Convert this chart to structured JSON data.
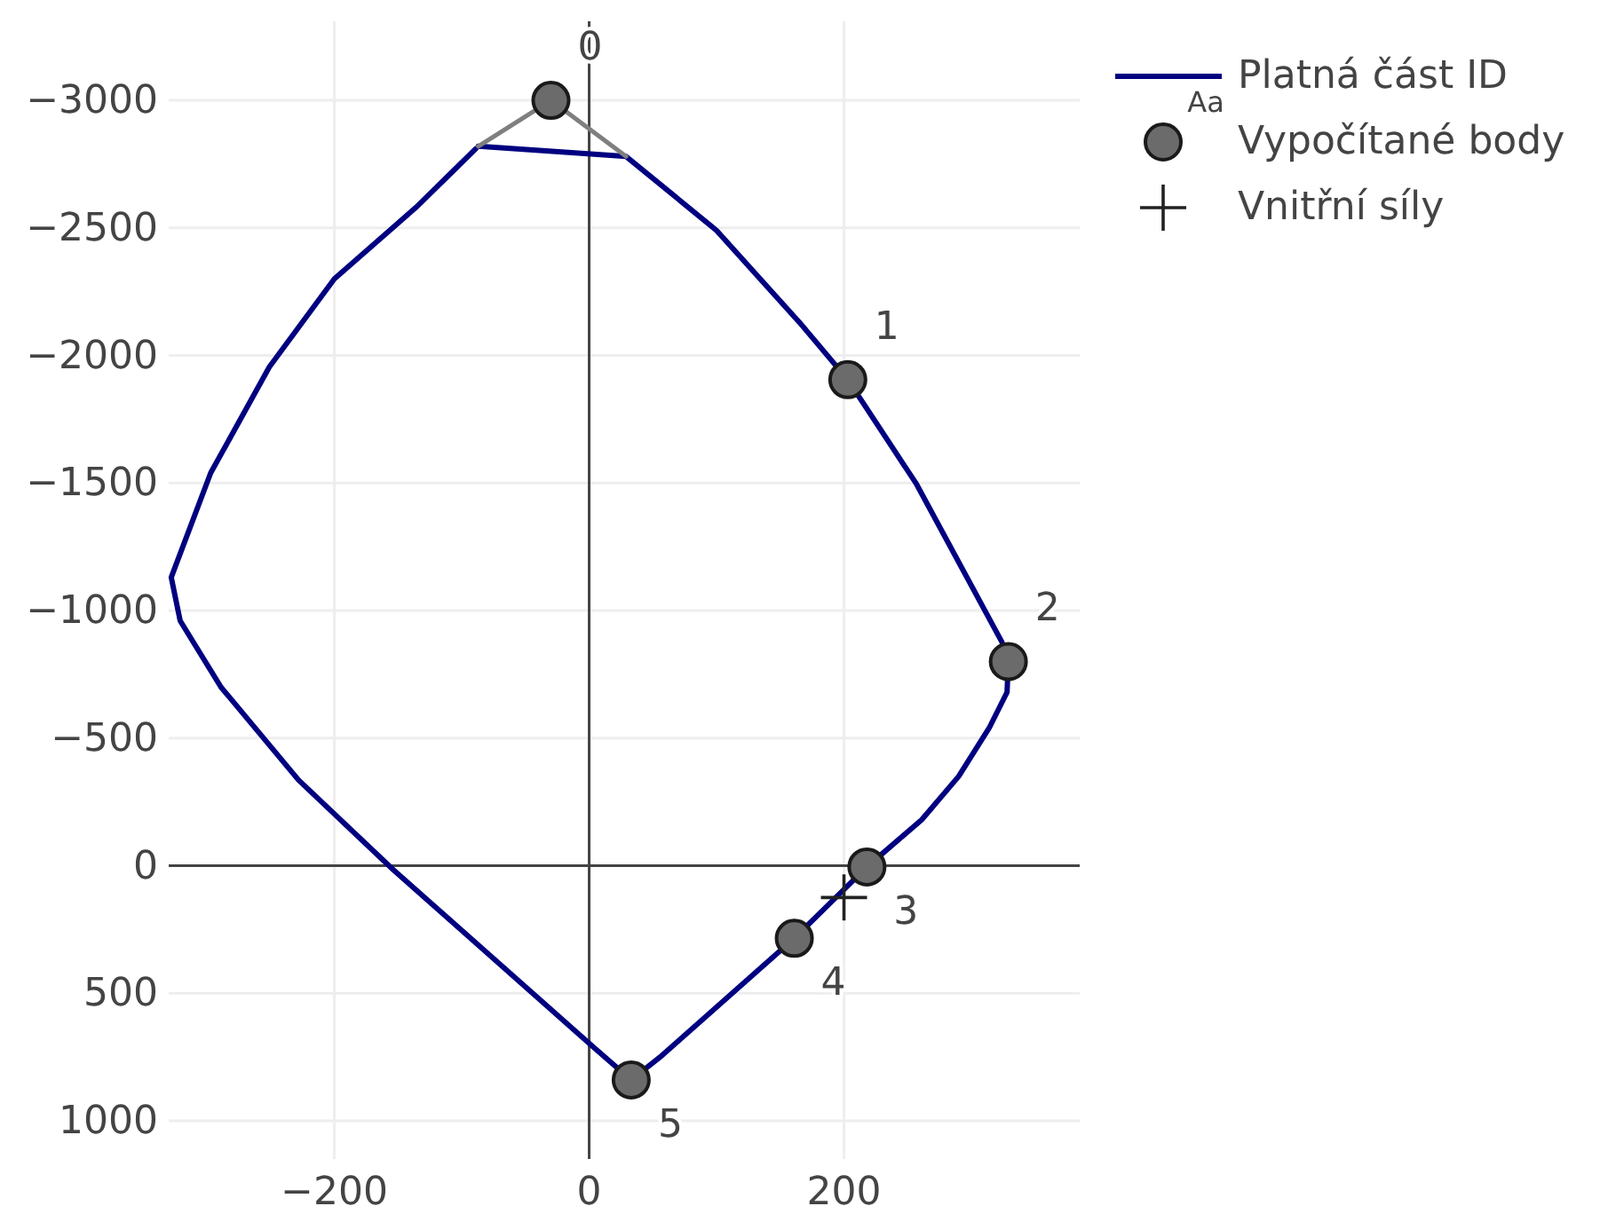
{
  "chart_data": {
    "type": "line",
    "xlim": [
      -330,
      385
    ],
    "ylim": [
      1150,
      -3310
    ],
    "xticks": [
      {
        "value": -200,
        "label": "−200"
      },
      0,
      200
    ],
    "yticks": [
      {
        "value": -3000,
        "label": "−3000"
      },
      {
        "value": -2500,
        "label": "−2500"
      },
      {
        "value": -2000,
        "label": "−2000"
      },
      {
        "value": -1500,
        "label": "−1500"
      },
      {
        "value": -1000,
        "label": "−1000"
      },
      {
        "value": -500,
        "label": "−500"
      },
      0,
      500,
      1000
    ],
    "grid": true,
    "legend": "top right",
    "series": [
      {
        "name": "Platná část ID",
        "type": "line",
        "color": "#000080",
        "x": [
          -87,
          29,
          100,
          165,
          203,
          257,
          324,
          329,
          328,
          314,
          290,
          261,
          218,
          161,
          57,
          33,
          3,
          -154,
          -228,
          -289,
          -321,
          -328,
          -325,
          -297,
          -251,
          -200,
          -136,
          -89
        ],
        "values": [
          -2820,
          -2780,
          -2490,
          -2130,
          -1905,
          -1495,
          -876,
          -800,
          -680,
          -540,
          -350,
          -180,
          5,
          285,
          745,
          840,
          710,
          15,
          -335,
          -700,
          -960,
          -1130,
          -1170,
          -1540,
          -1955,
          -2300,
          -2580,
          -2810
        ]
      },
      {
        "name": "Vypočítané body",
        "type": "scatter",
        "marker": "circle",
        "color": "#6b6b6b",
        "x": [
          -30,
          203,
          329,
          218,
          161,
          33
        ],
        "values": [
          -3000,
          -1905,
          -800,
          5,
          285,
          840
        ]
      },
      {
        "color": "#7f7f7f",
        "x": [
          -87,
          -30,
          29
        ],
        "values": [
          -2820,
          -3000,
          -2780
        ]
      },
      {
        "name": "Vnitřní síly",
        "type": "scatter",
        "marker": "cross",
        "color": "#222222",
        "x": [
          200
        ],
        "values": [
          125
        ]
      }
    ],
    "annotations": [
      {
        "text": "0",
        "x": -30,
        "y": -3000
      },
      {
        "text": "1",
        "x": 203,
        "y": -1905
      },
      {
        "text": "2",
        "x": 329,
        "y": -800
      },
      {
        "text": "3",
        "x": 218,
        "y": 5
      },
      {
        "text": "4",
        "x": 161,
        "y": 285
      },
      {
        "text": "5",
        "x": 33,
        "y": 840
      },
      "Aa"
    ]
  }
}
